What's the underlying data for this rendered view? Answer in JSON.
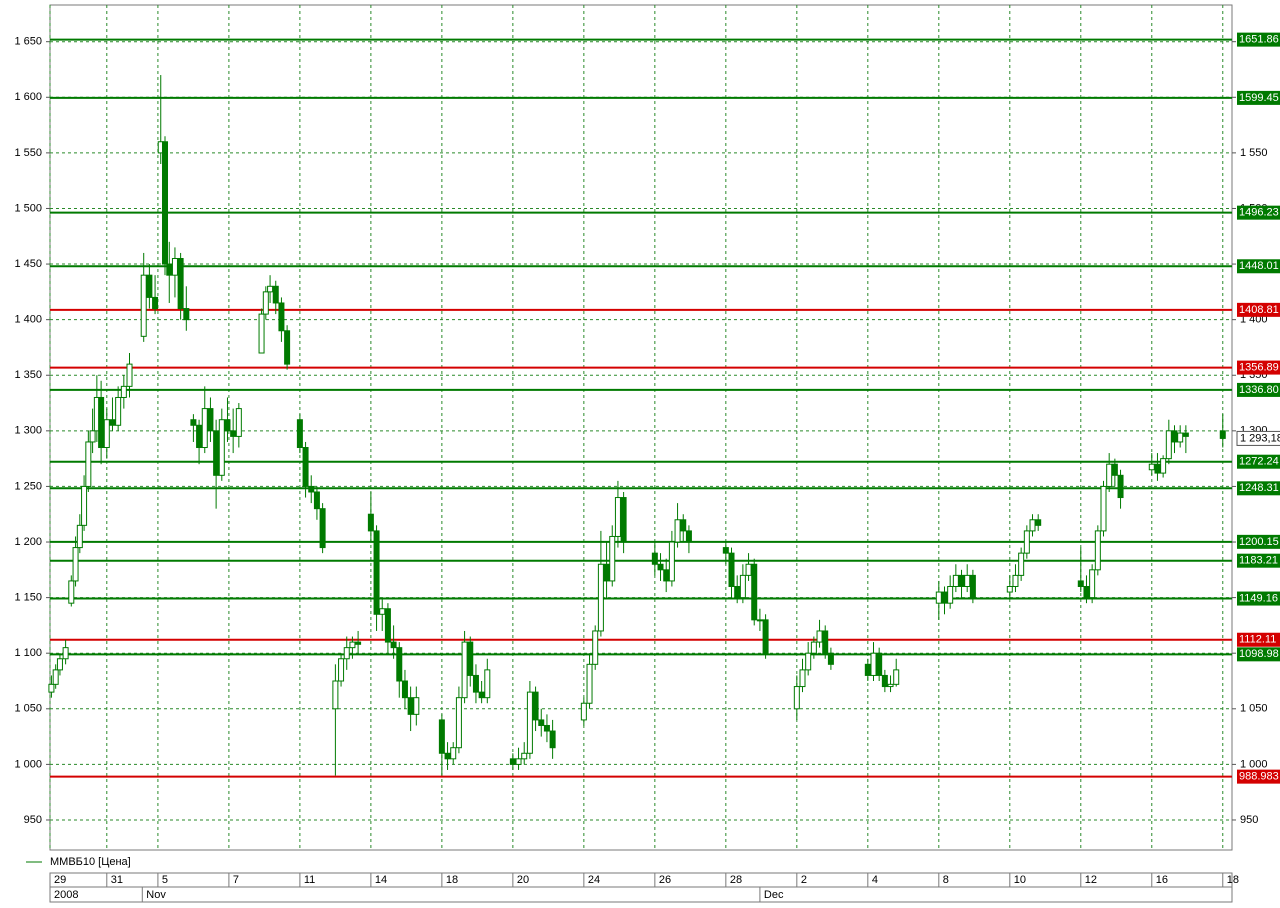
{
  "chart_data": {
    "type": "candlestick",
    "legend": "ММВБ10 [Цена]",
    "color": "#007a00",
    "grid": true,
    "xlim": [
      0,
      16.65
    ],
    "xticks": [
      {
        "value": 0,
        "label": "29"
      },
      {
        "value": 0.8,
        "label": "31"
      },
      {
        "value": 1.52,
        "label": "5"
      },
      {
        "value": 2.52,
        "label": "7"
      },
      {
        "value": 3.52,
        "label": "11"
      },
      {
        "value": 4.52,
        "label": "14"
      },
      {
        "value": 5.52,
        "label": "18"
      },
      {
        "value": 6.52,
        "label": "20"
      },
      {
        "value": 7.52,
        "label": "24"
      },
      {
        "value": 8.52,
        "label": "26"
      },
      {
        "value": 9.52,
        "label": "28"
      },
      {
        "value": 10.52,
        "label": "2"
      },
      {
        "value": 11.52,
        "label": "4"
      },
      {
        "value": 12.52,
        "label": "8"
      },
      {
        "value": 13.52,
        "label": "10"
      },
      {
        "value": 14.52,
        "label": "12"
      },
      {
        "value": 15.52,
        "label": "16"
      },
      {
        "value": 16.52,
        "label": "18"
      }
    ],
    "periods": [
      {
        "value": 0,
        "label": "2008"
      },
      {
        "value": 1.3,
        "label": "Nov"
      },
      {
        "value": 10.0,
        "label": "Dec"
      }
    ],
    "ylim": [
      923,
      1683
    ],
    "yticks": [
      {
        "value": 950,
        "label": "950"
      },
      {
        "value": 1000,
        "label": "1 000"
      },
      {
        "value": 1050,
        "label": "1 050"
      },
      {
        "value": 1100,
        "label": "1 100"
      },
      {
        "value": 1150,
        "label": "1 150"
      },
      {
        "value": 1200,
        "label": "1 200"
      },
      {
        "value": 1250,
        "label": "1 250"
      },
      {
        "value": 1300,
        "label": "1 300"
      },
      {
        "value": 1350,
        "label": "1 350"
      },
      {
        "value": 1400,
        "label": "1 400"
      },
      {
        "value": 1450,
        "label": "1 450"
      },
      {
        "value": 1500,
        "label": "1 500"
      },
      {
        "value": 1550,
        "label": "1 550"
      },
      {
        "value": 1600,
        "label": "1 600"
      },
      {
        "value": 1650,
        "label": "1 650"
      }
    ],
    "levels": [
      {
        "value": 1651.86,
        "label": "1651.86",
        "color": "#007a00"
      },
      {
        "value": 1599.45,
        "label": "1599.45",
        "color": "#007a00"
      },
      {
        "value": 1496.23,
        "label": "1496.23",
        "color": "#007a00"
      },
      {
        "value": 1448.01,
        "label": "1448.01",
        "color": "#007a00"
      },
      {
        "value": 1408.81,
        "label": "1408.81",
        "color": "#d40000"
      },
      {
        "value": 1356.89,
        "label": "1356.89",
        "color": "#d40000"
      },
      {
        "value": 1336.8,
        "label": "1336.80",
        "color": "#007a00"
      },
      {
        "value": 1272.24,
        "label": "1272.24",
        "color": "#007a00"
      },
      {
        "value": 1248.31,
        "label": "1248.31",
        "color": "#007a00"
      },
      {
        "value": 1200.15,
        "label": "1200.15",
        "color": "#007a00"
      },
      {
        "value": 1183.21,
        "label": "1183.21",
        "color": "#007a00"
      },
      {
        "value": 1149.16,
        "label": "1149.16",
        "color": "#007a00"
      },
      {
        "value": 1112.11,
        "label": "1112.11",
        "color": "#d40000"
      },
      {
        "value": 1098.98,
        "label": "1098.98",
        "color": "#007a00"
      },
      {
        "value": 988.983,
        "label": "988.983",
        "color": "#d40000"
      }
    ],
    "last": {
      "value": 1293.18,
      "label": "1 293,18"
    },
    "candles": {
      "x": [
        0.02,
        0.08,
        0.14,
        0.22,
        0.3,
        0.36,
        0.42,
        0.48,
        0.54,
        0.6,
        0.66,
        0.72,
        0.8,
        0.88,
        0.96,
        1.04,
        1.12,
        1.32,
        1.4,
        1.48,
        1.56,
        1.62,
        1.68,
        1.76,
        1.84,
        1.92,
        2.02,
        2.1,
        2.18,
        2.26,
        2.34,
        2.42,
        2.5,
        2.58,
        2.66,
        2.98,
        3.04,
        3.1,
        3.18,
        3.26,
        3.34,
        3.52,
        3.6,
        3.68,
        3.76,
        3.84,
        4.02,
        4.1,
        4.18,
        4.26,
        4.34,
        4.52,
        4.6,
        4.68,
        4.76,
        4.84,
        4.92,
        5.0,
        5.08,
        5.16,
        5.52,
        5.6,
        5.68,
        5.76,
        5.84,
        5.92,
        6.0,
        6.08,
        6.16,
        6.52,
        6.6,
        6.68,
        6.76,
        6.84,
        6.92,
        7.0,
        7.08,
        7.52,
        7.6,
        7.68,
        7.76,
        7.84,
        7.92,
        8.0,
        8.08,
        8.52,
        8.6,
        8.68,
        8.76,
        8.84,
        8.92,
        9.0,
        9.52,
        9.6,
        9.68,
        9.76,
        9.84,
        9.92,
        10.0,
        10.08,
        10.52,
        10.6,
        10.68,
        10.76,
        10.84,
        10.92,
        11.0,
        11.52,
        11.6,
        11.68,
        11.76,
        11.84,
        11.92,
        12.52,
        12.6,
        12.68,
        12.76,
        12.84,
        12.92,
        13.0,
        13.52,
        13.6,
        13.68,
        13.76,
        13.84,
        13.92,
        14.52,
        14.6,
        14.68,
        14.76,
        14.84,
        14.92,
        15.0,
        15.08,
        15.52,
        15.6,
        15.68,
        15.76,
        15.84,
        15.92,
        16.0,
        16.52
      ],
      "open": [
        1065,
        1072,
        1085,
        1095,
        1145,
        1165,
        1195,
        1215,
        1250,
        1290,
        1300,
        1330,
        1285,
        1310,
        1305,
        1330,
        1340,
        1385,
        1440,
        1420,
        1550,
        1560,
        1450,
        1440,
        1455,
        1410,
        1310,
        1305,
        1285,
        1320,
        1300,
        1260,
        1310,
        1300,
        1295,
        1370,
        1405,
        1425,
        1430,
        1415,
        1390,
        1310,
        1285,
        1250,
        1245,
        1230,
        1050,
        1075,
        1095,
        1105,
        1110,
        1225,
        1210,
        1135,
        1140,
        1110,
        1105,
        1075,
        1060,
        1045,
        1040,
        1010,
        1005,
        1015,
        1060,
        1110,
        1080,
        1065,
        1060,
        1005,
        1000,
        1005,
        1010,
        1065,
        1040,
        1035,
        1030,
        1040,
        1055,
        1090,
        1120,
        1180,
        1165,
        1205,
        1240,
        1190,
        1180,
        1175,
        1165,
        1200,
        1220,
        1210,
        1195,
        1190,
        1160,
        1150,
        1170,
        1180,
        1130,
        1130,
        1050,
        1070,
        1085,
        1100,
        1110,
        1120,
        1100,
        1090,
        1080,
        1100,
        1080,
        1070,
        1072,
        1145,
        1155,
        1145,
        1160,
        1170,
        1160,
        1170,
        1155,
        1160,
        1170,
        1190,
        1210,
        1220,
        1165,
        1160,
        1150,
        1175,
        1210,
        1250,
        1270,
        1260,
        1265,
        1270,
        1262,
        1275,
        1300,
        1290,
        1298,
        1300
      ],
      "high": [
        1080,
        1090,
        1100,
        1112,
        1170,
        1205,
        1225,
        1260,
        1300,
        1320,
        1350,
        1345,
        1320,
        1330,
        1340,
        1350,
        1370,
        1460,
        1450,
        1440,
        1620,
        1565,
        1470,
        1465,
        1460,
        1430,
        1315,
        1310,
        1340,
        1330,
        1310,
        1320,
        1330,
        1320,
        1325,
        1410,
        1430,
        1440,
        1435,
        1420,
        1395,
        1315,
        1290,
        1260,
        1250,
        1235,
        1090,
        1100,
        1115,
        1115,
        1120,
        1245,
        1215,
        1150,
        1145,
        1125,
        1110,
        1085,
        1070,
        1070,
        1045,
        1020,
        1020,
        1070,
        1120,
        1115,
        1090,
        1075,
        1095,
        1010,
        1015,
        1020,
        1075,
        1070,
        1050,
        1045,
        1040,
        1060,
        1100,
        1125,
        1210,
        1200,
        1215,
        1255,
        1245,
        1200,
        1190,
        1185,
        1210,
        1235,
        1225,
        1215,
        1200,
        1195,
        1170,
        1180,
        1190,
        1185,
        1140,
        1135,
        1080,
        1095,
        1110,
        1115,
        1130,
        1125,
        1105,
        1095,
        1110,
        1105,
        1085,
        1080,
        1095,
        1165,
        1160,
        1170,
        1180,
        1175,
        1180,
        1175,
        1170,
        1180,
        1195,
        1215,
        1225,
        1225,
        1195,
        1170,
        1180,
        1215,
        1255,
        1280,
        1275,
        1265,
        1280,
        1280,
        1278,
        1310,
        1305,
        1305,
        1305,
        1315
      ],
      "low": [
        1060,
        1068,
        1080,
        1090,
        1142,
        1160,
        1190,
        1210,
        1245,
        1280,
        1290,
        1270,
        1275,
        1300,
        1300,
        1320,
        1330,
        1380,
        1410,
        1405,
        1540,
        1440,
        1415,
        1420,
        1400,
        1390,
        1290,
        1270,
        1280,
        1290,
        1230,
        1255,
        1290,
        1280,
        1285,
        1370,
        1400,
        1415,
        1405,
        1380,
        1355,
        1280,
        1240,
        1235,
        1220,
        1190,
        990,
        1070,
        1085,
        1095,
        1100,
        1200,
        1120,
        1120,
        1100,
        1095,
        1060,
        1050,
        1030,
        1035,
        990,
        995,
        1000,
        1010,
        1055,
        1070,
        1055,
        1055,
        1055,
        995,
        995,
        1000,
        1005,
        1030,
        1025,
        1020,
        1005,
        1035,
        1050,
        1085,
        1115,
        1150,
        1160,
        1195,
        1190,
        1170,
        1165,
        1155,
        1160,
        1195,
        1200,
        1190,
        1180,
        1150,
        1145,
        1145,
        1165,
        1125,
        1120,
        1095,
        1040,
        1065,
        1080,
        1095,
        1105,
        1095,
        1085,
        1075,
        1075,
        1075,
        1065,
        1065,
        1070,
        1130,
        1135,
        1140,
        1155,
        1150,
        1155,
        1145,
        1150,
        1155,
        1165,
        1185,
        1205,
        1210,
        1155,
        1145,
        1145,
        1170,
        1205,
        1245,
        1250,
        1230,
        1260,
        1255,
        1258,
        1270,
        1280,
        1285,
        1280,
        1285
      ],
      "close": [
        1072,
        1085,
        1095,
        1105,
        1165,
        1195,
        1215,
        1250,
        1290,
        1300,
        1330,
        1285,
        1310,
        1305,
        1330,
        1340,
        1360,
        1440,
        1420,
        1410,
        1560,
        1450,
        1440,
        1455,
        1410,
        1400,
        1305,
        1285,
        1320,
        1300,
        1260,
        1310,
        1300,
        1295,
        1320,
        1405,
        1425,
        1430,
        1415,
        1390,
        1360,
        1285,
        1250,
        1245,
        1230,
        1195,
        1075,
        1095,
        1105,
        1110,
        1108,
        1210,
        1135,
        1140,
        1110,
        1105,
        1075,
        1060,
        1045,
        1060,
        1010,
        1005,
        1015,
        1060,
        1110,
        1080,
        1065,
        1060,
        1085,
        1000,
        1005,
        1010,
        1065,
        1040,
        1035,
        1030,
        1015,
        1055,
        1090,
        1120,
        1180,
        1165,
        1205,
        1240,
        1200,
        1180,
        1175,
        1165,
        1200,
        1220,
        1210,
        1200,
        1190,
        1160,
        1150,
        1170,
        1180,
        1130,
        1130,
        1100,
        1070,
        1085,
        1100,
        1110,
        1120,
        1100,
        1090,
        1080,
        1100,
        1080,
        1070,
        1072,
        1085,
        1155,
        1145,
        1160,
        1170,
        1160,
        1170,
        1150,
        1160,
        1170,
        1190,
        1210,
        1220,
        1215,
        1160,
        1150,
        1175,
        1210,
        1250,
        1270,
        1260,
        1240,
        1270,
        1262,
        1275,
        1300,
        1290,
        1298,
        1295,
        1293.18
      ]
    }
  }
}
